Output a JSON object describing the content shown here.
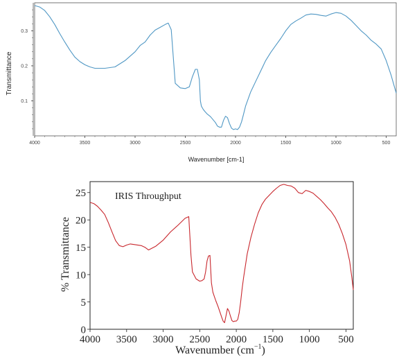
{
  "chart_data": [
    {
      "type": "line",
      "title": "",
      "xlabel": "Wavenumber [cm-1]",
      "ylabel": "Transmittance",
      "xlim": [
        4000,
        400
      ],
      "ylim": [
        0.0,
        0.38
      ],
      "x_ticks": [
        "4000",
        "3500",
        "3000",
        "2500",
        "2000",
        "1500",
        "1000",
        "500"
      ],
      "y_ticks": [
        "0.1",
        "0.2",
        "0.3"
      ],
      "grid": false,
      "legend": "none",
      "color": "#4f97c4",
      "series": [
        {
          "x": [
            4000,
            3950,
            3900,
            3850,
            3800,
            3750,
            3700,
            3650,
            3600,
            3550,
            3500,
            3450,
            3400,
            3300,
            3200,
            3100,
            3000,
            2950,
            2900,
            2850,
            2800,
            2750,
            2700,
            2670,
            2640,
            2600,
            2550,
            2500,
            2460,
            2430,
            2400,
            2380,
            2360,
            2350,
            2340,
            2320,
            2300,
            2280,
            2250,
            2220,
            2200,
            2180,
            2160,
            2140,
            2120,
            2100,
            2080,
            2060,
            2040,
            2020,
            2000,
            1980,
            1960,
            1940,
            1920,
            1900,
            1850,
            1800,
            1750,
            1700,
            1650,
            1600,
            1550,
            1500,
            1450,
            1400,
            1350,
            1300,
            1250,
            1200,
            1150,
            1100,
            1050,
            1000,
            950,
            900,
            850,
            800,
            750,
            700,
            650,
            600,
            550,
            500,
            450,
            420,
            400
          ],
          "y": [
            0.372,
            0.368,
            0.358,
            0.34,
            0.318,
            0.292,
            0.268,
            0.245,
            0.225,
            0.212,
            0.203,
            0.197,
            0.193,
            0.193,
            0.197,
            0.215,
            0.24,
            0.258,
            0.268,
            0.288,
            0.302,
            0.31,
            0.318,
            0.322,
            0.303,
            0.15,
            0.137,
            0.135,
            0.14,
            0.168,
            0.19,
            0.19,
            0.16,
            0.1,
            0.085,
            0.075,
            0.068,
            0.062,
            0.055,
            0.045,
            0.038,
            0.028,
            0.025,
            0.025,
            0.044,
            0.056,
            0.052,
            0.035,
            0.022,
            0.018,
            0.02,
            0.018,
            0.025,
            0.04,
            0.062,
            0.085,
            0.125,
            0.155,
            0.185,
            0.215,
            0.238,
            0.258,
            0.278,
            0.3,
            0.318,
            0.328,
            0.336,
            0.345,
            0.348,
            0.347,
            0.344,
            0.342,
            0.348,
            0.352,
            0.35,
            0.342,
            0.33,
            0.315,
            0.3,
            0.288,
            0.273,
            0.262,
            0.248,
            0.215,
            0.172,
            0.142,
            0.122
          ]
        }
      ]
    },
    {
      "type": "line",
      "title": "IRIS Throughput",
      "xlabel": "Wavenumber (cm",
      "xlabel_sup": "−1",
      "xlabel_end": ")",
      "ylabel": "% Transmittance",
      "xlim": [
        4000,
        400
      ],
      "ylim": [
        0,
        27
      ],
      "x_ticks": [
        "4000",
        "3500",
        "3000",
        "2500",
        "2000",
        "1500",
        "1000",
        "500"
      ],
      "y_ticks": [
        "0",
        "5",
        "10",
        "15",
        "20",
        "25"
      ],
      "grid": false,
      "legend": "none",
      "color": "#c8262c",
      "series": [
        {
          "x": [
            4000,
            3950,
            3900,
            3850,
            3800,
            3750,
            3700,
            3650,
            3600,
            3550,
            3500,
            3450,
            3400,
            3300,
            3250,
            3200,
            3100,
            3000,
            2900,
            2800,
            2700,
            2650,
            2620,
            2600,
            2550,
            2500,
            2470,
            2440,
            2420,
            2400,
            2380,
            2360,
            2340,
            2320,
            2300,
            2280,
            2250,
            2220,
            2200,
            2180,
            2160,
            2140,
            2120,
            2100,
            2080,
            2060,
            2040,
            2020,
            2000,
            1980,
            1960,
            1940,
            1920,
            1900,
            1850,
            1800,
            1750,
            1700,
            1650,
            1600,
            1550,
            1500,
            1450,
            1400,
            1350,
            1300,
            1250,
            1200,
            1150,
            1100,
            1050,
            1000,
            950,
            900,
            850,
            800,
            750,
            700,
            650,
            600,
            550,
            500,
            450,
            420,
            400
          ],
          "y": [
            23.2,
            23.0,
            22.5,
            21.8,
            21.0,
            19.5,
            17.8,
            16.2,
            15.3,
            15.1,
            15.4,
            15.6,
            15.5,
            15.3,
            15.0,
            14.5,
            15.2,
            16.3,
            17.8,
            19.0,
            20.3,
            20.6,
            13.5,
            10.5,
            9.2,
            8.8,
            8.9,
            9.2,
            10.5,
            12.5,
            13.4,
            13.5,
            8.5,
            6.8,
            6.0,
            5.2,
            4.2,
            3.0,
            2.2,
            1.5,
            1.2,
            2.5,
            3.8,
            3.3,
            2.4,
            1.6,
            1.4,
            1.5,
            1.5,
            1.8,
            3.0,
            5.0,
            7.5,
            9.5,
            13.8,
            16.8,
            19.2,
            21.3,
            22.8,
            23.8,
            24.5,
            25.2,
            25.8,
            26.3,
            26.5,
            26.3,
            26.2,
            25.8,
            25.0,
            24.8,
            25.4,
            25.2,
            24.9,
            24.3,
            23.7,
            23.0,
            22.2,
            21.5,
            20.5,
            19.2,
            17.5,
            15.5,
            12.5,
            9.5,
            7.2
          ]
        }
      ]
    }
  ]
}
